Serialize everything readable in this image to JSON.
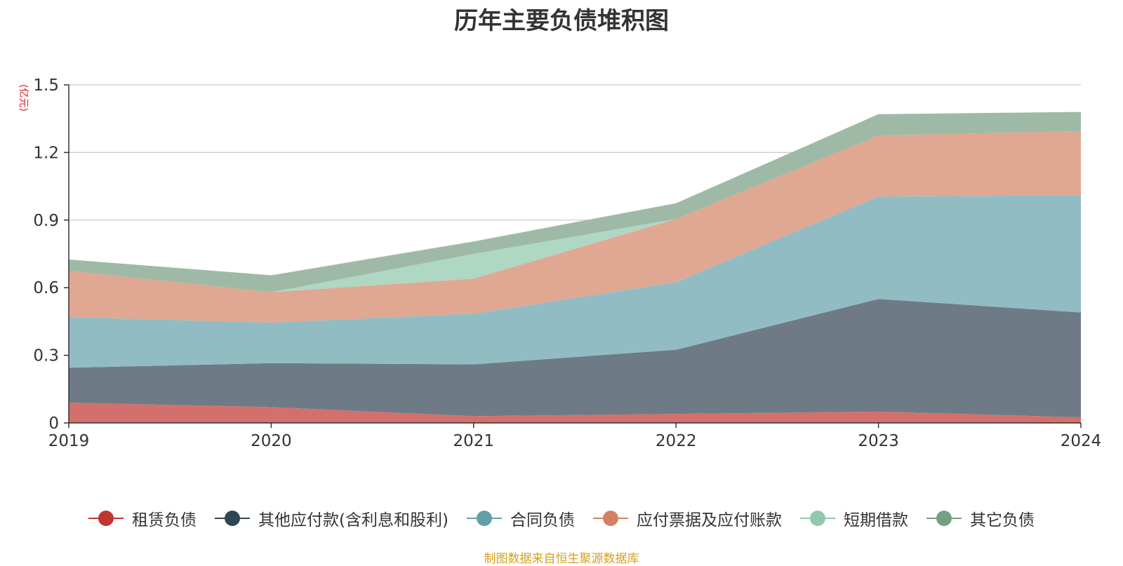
{
  "title": "历年主要负债堆积图",
  "unit": "(亿元)",
  "source": "制图数据来自恒生聚源数据库",
  "chart_data": {
    "type": "area",
    "stacked": true,
    "title": "历年主要负债堆积图",
    "ylabel": "(亿元)",
    "categories": [
      "2019",
      "2020",
      "2021",
      "2022",
      "2023",
      "2024"
    ],
    "ylim": [
      0,
      1.5
    ],
    "yticks": [
      "0",
      "0.3",
      "0.6",
      "0.9",
      "1.2",
      "1.5"
    ],
    "grid": true,
    "legend_position": "bottom",
    "series": [
      {
        "name": "租赁负债",
        "values": [
          0.09,
          0.07,
          0.03,
          0.04,
          0.05,
          0.025
        ],
        "color": "#c23531",
        "fill": "#d4706b"
      },
      {
        "name": "其他应付款(含利息和股利)",
        "values": [
          0.155,
          0.195,
          0.23,
          0.285,
          0.5,
          0.465
        ],
        "color": "#2f4554",
        "fill": "#6e7b87"
      },
      {
        "name": "合同负债",
        "values": [
          0.225,
          0.18,
          0.225,
          0.3,
          0.455,
          0.52
        ],
        "color": "#61a0a8",
        "fill": "#92bcc3"
      },
      {
        "name": "应付票据及应付账款",
        "values": [
          0.205,
          0.135,
          0.155,
          0.28,
          0.27,
          0.285
        ],
        "color": "#d48265",
        "fill": "#e0a792"
      },
      {
        "name": "短期借款",
        "values": [
          0,
          0,
          0.11,
          0,
          0,
          0
        ],
        "color": "#91c7ae",
        "fill": "#aed7c4"
      },
      {
        "name": "其它负债",
        "values": [
          0.05,
          0.075,
          0.055,
          0.07,
          0.095,
          0.085
        ],
        "color": "#749f83",
        "fill": "#9ebaa7"
      }
    ]
  }
}
